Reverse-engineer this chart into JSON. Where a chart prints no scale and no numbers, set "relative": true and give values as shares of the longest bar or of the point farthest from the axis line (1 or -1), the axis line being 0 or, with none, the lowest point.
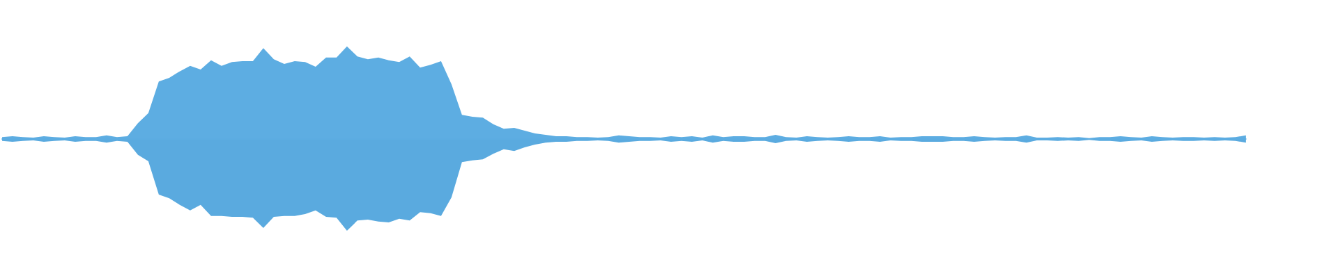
{
  "chart_data": {
    "type": "area",
    "relative": true,
    "categories": [
      null,
      null,
      null,
      null,
      null,
      null,
      null,
      null,
      null,
      null,
      null,
      null,
      null,
      null,
      null,
      null,
      null,
      null,
      null,
      null,
      null,
      null,
      null,
      null,
      null,
      null,
      null,
      null,
      null,
      null,
      null,
      null,
      null,
      null,
      null,
      null,
      null,
      null,
      null,
      null,
      null,
      null,
      null,
      null,
      null,
      null,
      null,
      null,
      null,
      null,
      null,
      null,
      null,
      null,
      null,
      null,
      null,
      null,
      null,
      null,
      null,
      null,
      null,
      null,
      null,
      null,
      null,
      null,
      null,
      null,
      null,
      null,
      null,
      null,
      null,
      null,
      null,
      null,
      null,
      null,
      null,
      null,
      null,
      null,
      null,
      null,
      null,
      null,
      null,
      null,
      null,
      null,
      null,
      null,
      null,
      null,
      null,
      null,
      null,
      null,
      null,
      null,
      null,
      null,
      null,
      null,
      null,
      null,
      null,
      null,
      null,
      null,
      null,
      null,
      null,
      null,
      null,
      null,
      null,
      null
    ],
    "series": [
      {
        "color": "#5dade2",
        "values": [
          0.02,
          0.03,
          0.02,
          0.015,
          0.03,
          0.02,
          0.015,
          0.03,
          0.02,
          0.02,
          0.04,
          0.02,
          0.03,
          0.17,
          0.28,
          0.62,
          0.66,
          0.73,
          0.79,
          0.75,
          0.85,
          0.79,
          0.83,
          0.84,
          0.84,
          0.98,
          0.86,
          0.81,
          0.84,
          0.83,
          0.78,
          0.88,
          0.88,
          1.0,
          0.89,
          0.86,
          0.88,
          0.85,
          0.83,
          0.89,
          0.77,
          0.8,
          0.84,
          0.59,
          0.26,
          0.24,
          0.23,
          0.16,
          0.11,
          0.12,
          0.09,
          0.06,
          0.045,
          0.03,
          0.03,
          0.02,
          0.02,
          0.015,
          0.02,
          0.04,
          0.03,
          0.02,
          0.02,
          0.015,
          0.03,
          0.02,
          0.03,
          0.015,
          0.04,
          0.02,
          0.03,
          0.03,
          0.02,
          0.02,
          0.045,
          0.02,
          0.015,
          0.03,
          0.02,
          0.015,
          0.02,
          0.03,
          0.02,
          0.02,
          0.03,
          0.015,
          0.02,
          0.02,
          0.03,
          0.03,
          0.03,
          0.02,
          0.02,
          0.03,
          0.02,
          0.015,
          0.02,
          0.02,
          0.04,
          0.015,
          0.015,
          0.02,
          0.015,
          0.02,
          0.01,
          0.02,
          0.02,
          0.03,
          0.02,
          0.015,
          0.03,
          0.02,
          0.015,
          0.02,
          0.02,
          0.015,
          0.02,
          0.015,
          0.02,
          0.04
        ]
      },
      {
        "color": "#5aaadf",
        "values": [
          -0.02,
          -0.03,
          -0.02,
          -0.015,
          -0.03,
          -0.02,
          -0.015,
          -0.03,
          -0.02,
          -0.02,
          -0.04,
          -0.02,
          -0.03,
          -0.17,
          -0.24,
          -0.6,
          -0.64,
          -0.71,
          -0.77,
          -0.71,
          -0.83,
          -0.83,
          -0.84,
          -0.84,
          -0.85,
          -0.96,
          -0.84,
          -0.83,
          -0.83,
          -0.81,
          -0.77,
          -0.84,
          -0.85,
          -0.99,
          -0.88,
          -0.87,
          -0.89,
          -0.9,
          -0.86,
          -0.88,
          -0.79,
          -0.8,
          -0.83,
          -0.63,
          -0.25,
          -0.23,
          -0.22,
          -0.16,
          -0.11,
          -0.13,
          -0.09,
          -0.06,
          -0.04,
          -0.03,
          -0.03,
          -0.02,
          -0.02,
          -0.015,
          -0.02,
          -0.04,
          -0.03,
          -0.02,
          -0.02,
          -0.015,
          -0.03,
          -0.02,
          -0.03,
          -0.015,
          -0.04,
          -0.02,
          -0.03,
          -0.03,
          -0.02,
          -0.02,
          -0.045,
          -0.02,
          -0.015,
          -0.03,
          -0.02,
          -0.015,
          -0.02,
          -0.03,
          -0.02,
          -0.02,
          -0.03,
          -0.015,
          -0.02,
          -0.02,
          -0.03,
          -0.03,
          -0.03,
          -0.02,
          -0.02,
          -0.03,
          -0.02,
          -0.015,
          -0.02,
          -0.02,
          -0.04,
          -0.015,
          -0.015,
          -0.02,
          -0.015,
          -0.02,
          -0.01,
          -0.02,
          -0.02,
          -0.03,
          -0.02,
          -0.015,
          -0.03,
          -0.02,
          -0.015,
          -0.02,
          -0.02,
          -0.015,
          -0.02,
          -0.015,
          -0.02,
          -0.04
        ]
      }
    ]
  }
}
